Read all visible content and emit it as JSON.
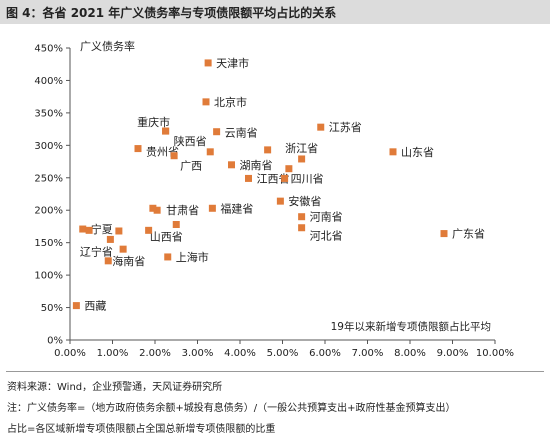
{
  "figure_title": "图 4：各省 2021 年广义债务率与专项债限额平均占比的关系",
  "sources": [
    "资料来源：Wind，企业预警通，天风证券研究所",
    "注：广义债务率=（地方政府债务余额+城投有息债务）/（一般公共预算支出+政府性基金预算支出）",
    "占比=各区域新增专项债限额占全国总新增专项债限额的比重"
  ],
  "chart_data": {
    "type": "scatter",
    "ylabel": "广义债务率",
    "xlabel": "19年以来新增专项债限额占比平均",
    "xlim": [
      0,
      10
    ],
    "ylim": [
      0,
      450
    ],
    "xticks": [
      "0.00%",
      "1.00%",
      "2.00%",
      "3.00%",
      "4.00%",
      "5.00%",
      "6.00%",
      "7.00%",
      "8.00%",
      "9.00%",
      "10.00%"
    ],
    "yticks": [
      "0%",
      "50%",
      "100%",
      "150%",
      "200%",
      "250%",
      "300%",
      "350%",
      "400%",
      "450%"
    ],
    "grid": false,
    "marker_color": "#e07b39",
    "label_color": "#222222",
    "points": [
      {
        "label": "天津市",
        "x": 3.25,
        "y": 427
      },
      {
        "label": "北京市",
        "x": 3.2,
        "y": 367
      },
      {
        "label": "重庆市",
        "x": 2.25,
        "y": 322
      },
      {
        "label": "陕西省",
        "x": 2.25,
        "y": 322
      },
      {
        "label": "云南省",
        "x": 3.45,
        "y": 321
      },
      {
        "label": "江苏省",
        "x": 5.9,
        "y": 328
      },
      {
        "label": "贵州省",
        "x": 1.6,
        "y": 295
      },
      {
        "label": "广西",
        "x": 2.45,
        "y": 284
      },
      {
        "label": "",
        "x": 3.3,
        "y": 290
      },
      {
        "label": "",
        "x": 4.65,
        "y": 293
      },
      {
        "label": "山东省",
        "x": 7.6,
        "y": 290
      },
      {
        "label": "湖南省",
        "x": 3.8,
        "y": 270
      },
      {
        "label": "浙江省",
        "x": 5.45,
        "y": 279
      },
      {
        "label": "",
        "x": 5.15,
        "y": 264
      },
      {
        "label": "江西省",
        "x": 4.2,
        "y": 249
      },
      {
        "label": "四川省",
        "x": 5.05,
        "y": 249
      },
      {
        "label": "安徽省",
        "x": 4.95,
        "y": 214
      },
      {
        "label": "福建省",
        "x": 3.35,
        "y": 203
      },
      {
        "label": "甘肃省",
        "x": 2.05,
        "y": 200
      },
      {
        "label": "",
        "x": 1.95,
        "y": 203
      },
      {
        "label": "河南省",
        "x": 5.45,
        "y": 190
      },
      {
        "label": "河北省",
        "x": 5.45,
        "y": 173
      },
      {
        "label": "广东省",
        "x": 8.8,
        "y": 164
      },
      {
        "label": "宁夏",
        "x": 0.3,
        "y": 171
      },
      {
        "label": "",
        "x": 0.45,
        "y": 169
      },
      {
        "label": "",
        "x": 1.15,
        "y": 168
      },
      {
        "label": "",
        "x": 1.85,
        "y": 169
      },
      {
        "label": "山西省",
        "x": 2.5,
        "y": 178
      },
      {
        "label": "辽宁省",
        "x": 0.95,
        "y": 155
      },
      {
        "label": "",
        "x": 1.25,
        "y": 140
      },
      {
        "label": "海南省",
        "x": 0.9,
        "y": 122
      },
      {
        "label": "上海市",
        "x": 2.3,
        "y": 128
      },
      {
        "label": "西藏",
        "x": 0.15,
        "y": 53
      }
    ]
  }
}
